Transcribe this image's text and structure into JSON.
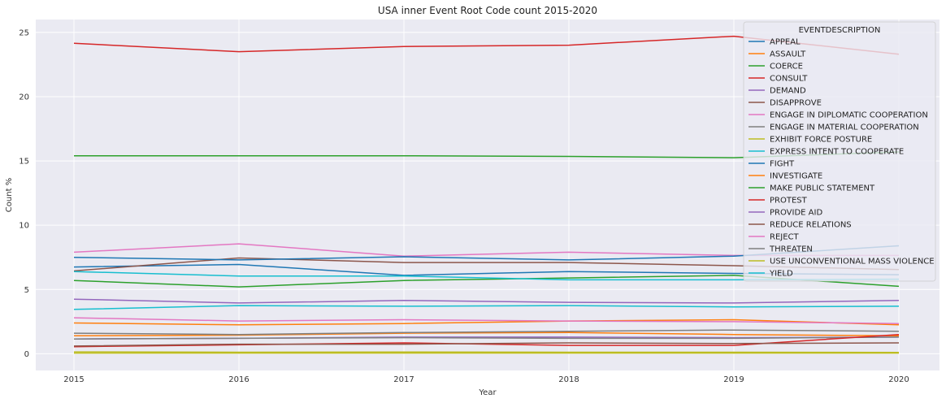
{
  "chart_data": {
    "type": "line",
    "title": "USA inner Event Root Code count 2015-2020",
    "xlabel": "Year",
    "ylabel": "Count %",
    "x": [
      "2015",
      "2016",
      "2017",
      "2018",
      "2019",
      "2020"
    ],
    "ylim": [
      -1.3,
      26.0
    ],
    "yticks": [
      0,
      5,
      10,
      15,
      20,
      25
    ],
    "grid": true,
    "legend": {
      "title": "EVENTDESCRIPTION",
      "placement": "top-right"
    },
    "series": [
      {
        "name": "APPEAL",
        "color": "#1f77b4",
        "values": [
          6.75,
          6.95,
          6.1,
          6.4,
          6.25,
          6.15
        ]
      },
      {
        "name": "ASSAULT",
        "color": "#ff7f0e",
        "values": [
          2.4,
          2.25,
          2.35,
          2.55,
          2.65,
          2.25
        ]
      },
      {
        "name": "COERCE",
        "color": "#2ca02c",
        "values": [
          5.7,
          5.2,
          5.7,
          5.9,
          6.1,
          5.25
        ]
      },
      {
        "name": "CONSULT",
        "color": "#d62728",
        "values": [
          24.15,
          23.5,
          23.9,
          24.0,
          24.7,
          23.3
        ]
      },
      {
        "name": "DEMAND",
        "color": "#9467bd",
        "values": [
          1.15,
          1.2,
          1.3,
          1.3,
          1.25,
          1.3
        ]
      },
      {
        "name": "DISAPPROVE",
        "color": "#8c564b",
        "values": [
          6.45,
          7.45,
          7.1,
          7.1,
          6.85,
          6.55
        ]
      },
      {
        "name": "ENGAGE IN DIPLOMATIC COOPERATION",
        "color": "#e377c2",
        "values": [
          7.9,
          8.55,
          7.6,
          7.9,
          7.65,
          7.65
        ]
      },
      {
        "name": "ENGAGE IN MATERIAL COOPERATION",
        "color": "#7f7f7f",
        "values": [
          1.15,
          1.2,
          1.25,
          1.2,
          1.2,
          1.3
        ]
      },
      {
        "name": "EXHIBIT FORCE POSTURE",
        "color": "#bcbd22",
        "values": [
          0.15,
          0.12,
          0.14,
          0.12,
          0.12,
          0.1
        ]
      },
      {
        "name": "EXPRESS INTENT TO COOPERATE",
        "color": "#17becf",
        "values": [
          6.4,
          6.05,
          6.05,
          5.75,
          5.75,
          5.8
        ]
      },
      {
        "name": "FIGHT",
        "color": "#1f77b4",
        "values": [
          7.5,
          7.3,
          7.55,
          7.3,
          7.6,
          8.4
        ]
      },
      {
        "name": "INVESTIGATE",
        "color": "#ff7f0e",
        "values": [
          1.4,
          1.45,
          1.6,
          1.65,
          1.5,
          1.4
        ]
      },
      {
        "name": "MAKE PUBLIC STATEMENT",
        "color": "#2ca02c",
        "values": [
          15.4,
          15.4,
          15.4,
          15.35,
          15.25,
          15.7
        ]
      },
      {
        "name": "PROTEST",
        "color": "#d62728",
        "values": [
          0.55,
          0.7,
          0.85,
          0.65,
          0.65,
          1.5
        ]
      },
      {
        "name": "PROVIDE AID",
        "color": "#9467bd",
        "values": [
          4.25,
          3.95,
          4.15,
          4.0,
          3.95,
          4.15
        ]
      },
      {
        "name": "REDUCE RELATIONS",
        "color": "#8c564b",
        "values": [
          0.6,
          0.75,
          0.75,
          0.85,
          0.8,
          0.85
        ]
      },
      {
        "name": "REJECT",
        "color": "#e377c2",
        "values": [
          2.8,
          2.55,
          2.65,
          2.55,
          2.5,
          2.35
        ]
      },
      {
        "name": "THREATEN",
        "color": "#7f7f7f",
        "values": [
          1.6,
          1.5,
          1.65,
          1.75,
          1.85,
          1.75
        ]
      },
      {
        "name": "USE UNCONVENTIONAL MASS VIOLENCE",
        "color": "#bcbd22",
        "values": [
          0.05,
          0.05,
          0.05,
          0.05,
          0.05,
          0.05
        ]
      },
      {
        "name": "YIELD",
        "color": "#17becf",
        "values": [
          3.45,
          3.75,
          3.7,
          3.75,
          3.65,
          3.7
        ]
      }
    ]
  }
}
